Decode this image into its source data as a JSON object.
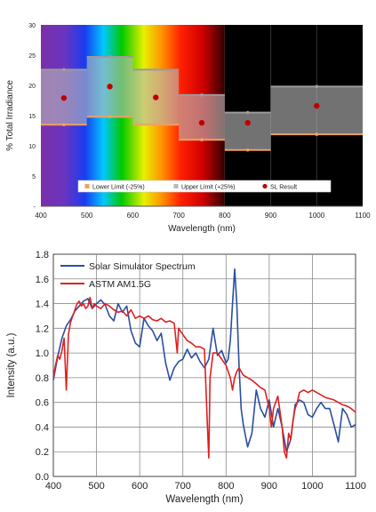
{
  "charts": [
    {
      "type": "bar",
      "ylabel": "% Total Irradiance",
      "xlabel": "Wavelength (nm)",
      "xlim": [
        400,
        1100
      ],
      "ylim": [
        0,
        30
      ],
      "x_ticks": [
        "400",
        "500",
        "600",
        "700",
        "800",
        "900",
        "1000",
        "1100"
      ],
      "y_ticks": [
        "-",
        "5",
        "10",
        "15",
        "20",
        "25",
        "30"
      ],
      "bands": [
        {
          "range": [
            400,
            500
          ],
          "lower": 13.5,
          "upper": 22.6,
          "sl": 17.9
        },
        {
          "range": [
            500,
            600
          ],
          "lower": 14.8,
          "upper": 24.7,
          "sl": 19.8
        },
        {
          "range": [
            600,
            700
          ],
          "lower": 13.5,
          "upper": 22.6,
          "sl": 18.0
        },
        {
          "range": [
            700,
            800
          ],
          "lower": 11.0,
          "upper": 18.4,
          "sl": 13.8
        },
        {
          "range": [
            800,
            900
          ],
          "lower": 9.3,
          "upper": 15.5,
          "sl": 13.8
        },
        {
          "range": [
            900,
            1100
          ],
          "lower": 11.9,
          "upper": 19.8,
          "sl": 16.6
        }
      ],
      "legend": [
        {
          "label": "Lower Limit (-25%)",
          "color": "#f0a060",
          "marker": "square"
        },
        {
          "label": "Upper Limit (+25%)",
          "color": "#b8b8b8",
          "marker": "square"
        },
        {
          "label": "SL  Result",
          "color": "#c00000",
          "marker": "circle"
        }
      ],
      "colors": {
        "band_fill": "#b8b8b8",
        "lower_line": "#f0a060",
        "upper_line": "#b8b8b8",
        "sl_point": "#c00000",
        "ir_background": "#000000"
      }
    },
    {
      "type": "line",
      "ylabel": "Intensity (a.u.)",
      "xlabel": "Wavelength (nm)",
      "xlim": [
        400,
        1100
      ],
      "ylim": [
        0,
        1.8
      ],
      "x_ticks": [
        "400",
        "500",
        "600",
        "700",
        "800",
        "900",
        "1000",
        "1100"
      ],
      "y_ticks": [
        "0.0",
        "0.2",
        "0.4",
        "0.6",
        "0.8",
        "1.0",
        "1.2",
        "1.4",
        "1.6",
        "1.8"
      ],
      "grid": true,
      "legend_position": "top-left",
      "series": [
        {
          "name": "Solar Simulator Spectrum",
          "color": "#2b4ea0",
          "x": [
            400,
            410,
            420,
            430,
            440,
            450,
            460,
            470,
            480,
            490,
            500,
            510,
            520,
            530,
            540,
            550,
            560,
            570,
            580,
            590,
            600,
            610,
            620,
            630,
            640,
            650,
            660,
            670,
            680,
            690,
            700,
            710,
            720,
            730,
            740,
            750,
            760,
            770,
            780,
            790,
            800,
            805,
            810,
            815,
            820,
            825,
            830,
            835,
            840,
            850,
            860,
            870,
            880,
            890,
            900,
            910,
            920,
            930,
            940,
            950,
            960,
            970,
            980,
            990,
            1000,
            1010,
            1020,
            1030,
            1040,
            1050,
            1060,
            1070,
            1080,
            1090,
            1100
          ],
          "y": [
            0.78,
            0.97,
            1.12,
            1.22,
            1.27,
            1.34,
            1.38,
            1.42,
            1.44,
            1.36,
            1.4,
            1.43,
            1.39,
            1.3,
            1.26,
            1.4,
            1.33,
            1.38,
            1.18,
            1.08,
            1.05,
            1.28,
            1.22,
            1.18,
            1.1,
            1.16,
            0.92,
            0.78,
            0.88,
            0.93,
            0.95,
            1.03,
            0.96,
            1.0,
            0.93,
            0.88,
            0.95,
            1.2,
            0.98,
            1.02,
            0.92,
            0.95,
            1.1,
            1.4,
            1.68,
            1.4,
            0.9,
            0.55,
            0.42,
            0.24,
            0.35,
            0.7,
            0.55,
            0.48,
            0.62,
            0.4,
            0.55,
            0.4,
            0.2,
            0.3,
            0.58,
            0.62,
            0.6,
            0.5,
            0.48,
            0.55,
            0.6,
            0.55,
            0.55,
            0.42,
            0.28,
            0.55,
            0.5,
            0.4,
            0.42
          ]
        },
        {
          "name": "ASTM AM1.5G",
          "color": "#e02020",
          "x": [
            400,
            405,
            410,
            415,
            420,
            425,
            430,
            435,
            440,
            445,
            450,
            455,
            460,
            465,
            470,
            475,
            480,
            485,
            490,
            495,
            500,
            510,
            520,
            530,
            540,
            550,
            560,
            570,
            580,
            590,
            600,
            610,
            620,
            630,
            640,
            650,
            660,
            670,
            680,
            687,
            690,
            700,
            710,
            720,
            730,
            740,
            750,
            757,
            760,
            763,
            770,
            780,
            790,
            800,
            810,
            815,
            820,
            825,
            830,
            840,
            850,
            860,
            870,
            880,
            890,
            900,
            905,
            910,
            920,
            930,
            935,
            940,
            945,
            950,
            955,
            960,
            965,
            970,
            980,
            990,
            1000,
            1010,
            1020,
            1030,
            1040,
            1050,
            1060,
            1070,
            1080,
            1090,
            1100
          ],
          "y": [
            0.8,
            0.9,
            0.98,
            0.95,
            1.02,
            1.12,
            0.7,
            1.15,
            1.25,
            1.3,
            1.35,
            1.4,
            1.42,
            1.38,
            1.4,
            1.36,
            1.38,
            1.45,
            1.36,
            1.4,
            1.38,
            1.36,
            1.4,
            1.38,
            1.35,
            1.33,
            1.34,
            1.3,
            1.35,
            1.28,
            1.3,
            1.28,
            1.3,
            1.27,
            1.26,
            1.28,
            1.25,
            1.26,
            1.24,
            1.0,
            1.2,
            1.15,
            1.1,
            1.08,
            1.05,
            1.05,
            1.03,
            0.4,
            0.15,
            0.8,
            1.0,
            1.0,
            0.95,
            0.9,
            0.8,
            0.7,
            0.8,
            0.85,
            0.88,
            0.82,
            0.8,
            0.78,
            0.75,
            0.72,
            0.7,
            0.55,
            0.4,
            0.55,
            0.65,
            0.4,
            0.2,
            0.15,
            0.35,
            0.3,
            0.45,
            0.55,
            0.6,
            0.68,
            0.7,
            0.68,
            0.7,
            0.68,
            0.66,
            0.64,
            0.63,
            0.62,
            0.6,
            0.58,
            0.57,
            0.55,
            0.52
          ]
        }
      ]
    }
  ]
}
